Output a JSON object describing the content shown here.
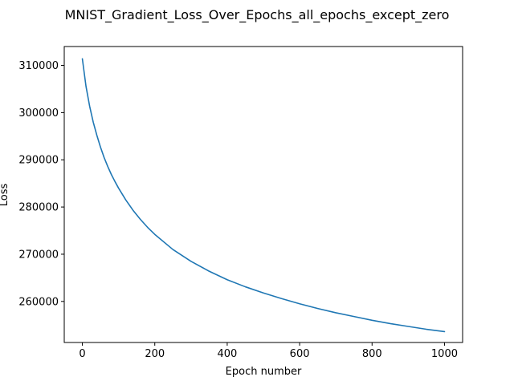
{
  "chart_data": {
    "type": "line",
    "title": "MNIST_Gradient_Loss_Over_Epochs_all_epochs_except_zero",
    "xlabel": "Epoch number",
    "ylabel": "Loss",
    "xlim": [
      -50,
      1050
    ],
    "ylim": [
      251300,
      314000
    ],
    "xticks": [
      0,
      200,
      400,
      600,
      800,
      1000
    ],
    "yticks": [
      260000,
      270000,
      280000,
      290000,
      300000,
      310000
    ],
    "grid": false,
    "series": [
      {
        "color": "#1f77b4",
        "x": [
          0,
          10,
          20,
          30,
          40,
          50,
          60,
          70,
          80,
          90,
          100,
          120,
          140,
          160,
          180,
          200,
          250,
          300,
          350,
          400,
          450,
          500,
          550,
          600,
          650,
          700,
          750,
          800,
          850,
          900,
          950,
          1000
        ],
        "y": [
          311400,
          305600,
          301400,
          298000,
          295200,
          292700,
          290500,
          288600,
          286900,
          285400,
          284000,
          281500,
          279300,
          277400,
          275700,
          274200,
          271000,
          268500,
          266400,
          264600,
          263100,
          261800,
          260600,
          259500,
          258500,
          257600,
          256800,
          256000,
          255300,
          254700,
          254100,
          253600
        ]
      }
    ]
  }
}
